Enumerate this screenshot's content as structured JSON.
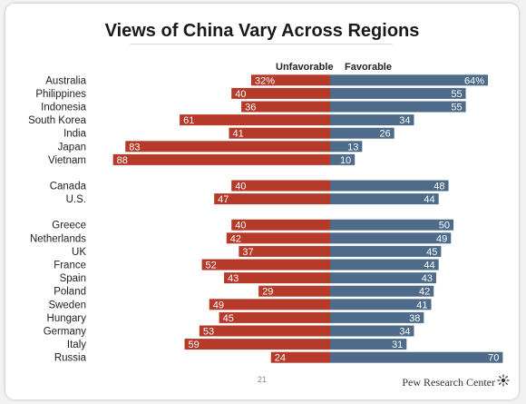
{
  "slide": {
    "title": "Views of China Vary Across Regions",
    "page_number": "21",
    "source": "Pew Research Center"
  },
  "legend": {
    "unfavorable": "Unfavorable",
    "favorable": "Favorable"
  },
  "colors": {
    "unfavorable": "#b53a2a",
    "favorable": "#4e6c8a"
  },
  "icons": {
    "pew_logo": "pew-sunburst-icon"
  },
  "chart_data": {
    "type": "bar",
    "orientation": "diverging-horizontal",
    "title": "Views of China Vary Across Regions",
    "xlim": [
      -90,
      70
    ],
    "categories": [
      "Australia",
      "Philippines",
      "Indonesia",
      "South Korea",
      "India",
      "Japan",
      "Vietnam",
      "Canada",
      "U.S.",
      "Greece",
      "Netherlands",
      "UK",
      "France",
      "Spain",
      "Poland",
      "Sweden",
      "Hungary",
      "Germany",
      "Italy",
      "Russia"
    ],
    "groups": [
      [
        "Australia",
        "Philippines",
        "Indonesia",
        "South Korea",
        "India",
        "Japan",
        "Vietnam"
      ],
      [
        "Canada",
        "U.S."
      ],
      [
        "Greece",
        "Netherlands",
        "UK",
        "France",
        "Spain",
        "Poland",
        "Sweden",
        "Hungary",
        "Germany",
        "Italy",
        "Russia"
      ]
    ],
    "series": [
      {
        "name": "Unfavorable",
        "values": [
          32,
          40,
          36,
          61,
          41,
          83,
          88,
          40,
          47,
          40,
          42,
          37,
          52,
          43,
          29,
          49,
          45,
          53,
          59,
          24
        ],
        "labels": [
          "32%",
          "40",
          "36",
          "61",
          "41",
          "83",
          "88",
          "40",
          "47",
          "40",
          "42",
          "37",
          "52",
          "43",
          "29",
          "49",
          "45",
          "53",
          "59",
          "24"
        ]
      },
      {
        "name": "Favorable",
        "values": [
          64,
          55,
          55,
          34,
          26,
          13,
          10,
          48,
          44,
          50,
          49,
          45,
          44,
          43,
          42,
          41,
          38,
          34,
          31,
          70
        ],
        "labels": [
          "64%",
          "55",
          "55",
          "34",
          "26",
          "13",
          "10",
          "48",
          "44",
          "50",
          "49",
          "45",
          "44",
          "43",
          "42",
          "41",
          "38",
          "34",
          "31",
          "70"
        ]
      }
    ]
  }
}
